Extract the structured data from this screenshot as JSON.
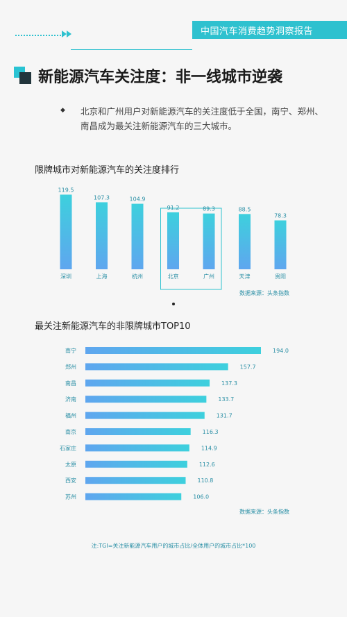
{
  "header": {
    "report_title": "中国汽车消费趋势洞察报告"
  },
  "section": {
    "title": "新能源汽车关注度：非一线城市逆袭",
    "bullet": "◆",
    "description": "北京和广州用户对新能源汽车的关注度低于全国，南宁、郑州、南昌成为最关注新能源汽车的三大城市。"
  },
  "colors": {
    "accent": "#2ec1cf",
    "bar_top": "#3dd0dd",
    "bar_bottom": "#5fa6ef",
    "label": "#2a8fa5"
  },
  "chart_data": [
    {
      "type": "bar",
      "title": "限牌城市对新能源汽车的关注度排行",
      "categories": [
        "深圳",
        "上海",
        "杭州",
        "北京",
        "广州",
        "天津",
        "贵阳"
      ],
      "values": [
        119.5,
        107.3,
        104.9,
        91.2,
        89.3,
        88.5,
        78.3
      ],
      "value_labels": [
        "119.5",
        "107.3",
        "104.9",
        "91.2",
        "89.3",
        "88.5",
        "78.3"
      ],
      "highlighted": [
        "北京",
        "广州"
      ],
      "ylim": [
        0,
        120
      ],
      "source": "数据来源：头条指数"
    },
    {
      "type": "bar",
      "orientation": "horizontal",
      "title": "最关注新能源汽车的非限牌城市TOP10",
      "categories": [
        "南宁",
        "郑州",
        "南昌",
        "济南",
        "福州",
        "南京",
        "石家庄",
        "太原",
        "西安",
        "苏州"
      ],
      "values": [
        194.0,
        157.7,
        137.3,
        133.7,
        131.7,
        116.3,
        114.9,
        112.6,
        110.8,
        106.0
      ],
      "value_labels": [
        "194.0",
        "157.7",
        "137.3",
        "133.7",
        "131.7",
        "116.3",
        "114.9",
        "112.6",
        "110.8",
        "106.0"
      ],
      "xlim": [
        0,
        194
      ],
      "source": "数据来源：头条指数"
    }
  ],
  "footnote": "注:TGI=关注新能源汽车用户的城市占比/全体用户的城市占比*100"
}
